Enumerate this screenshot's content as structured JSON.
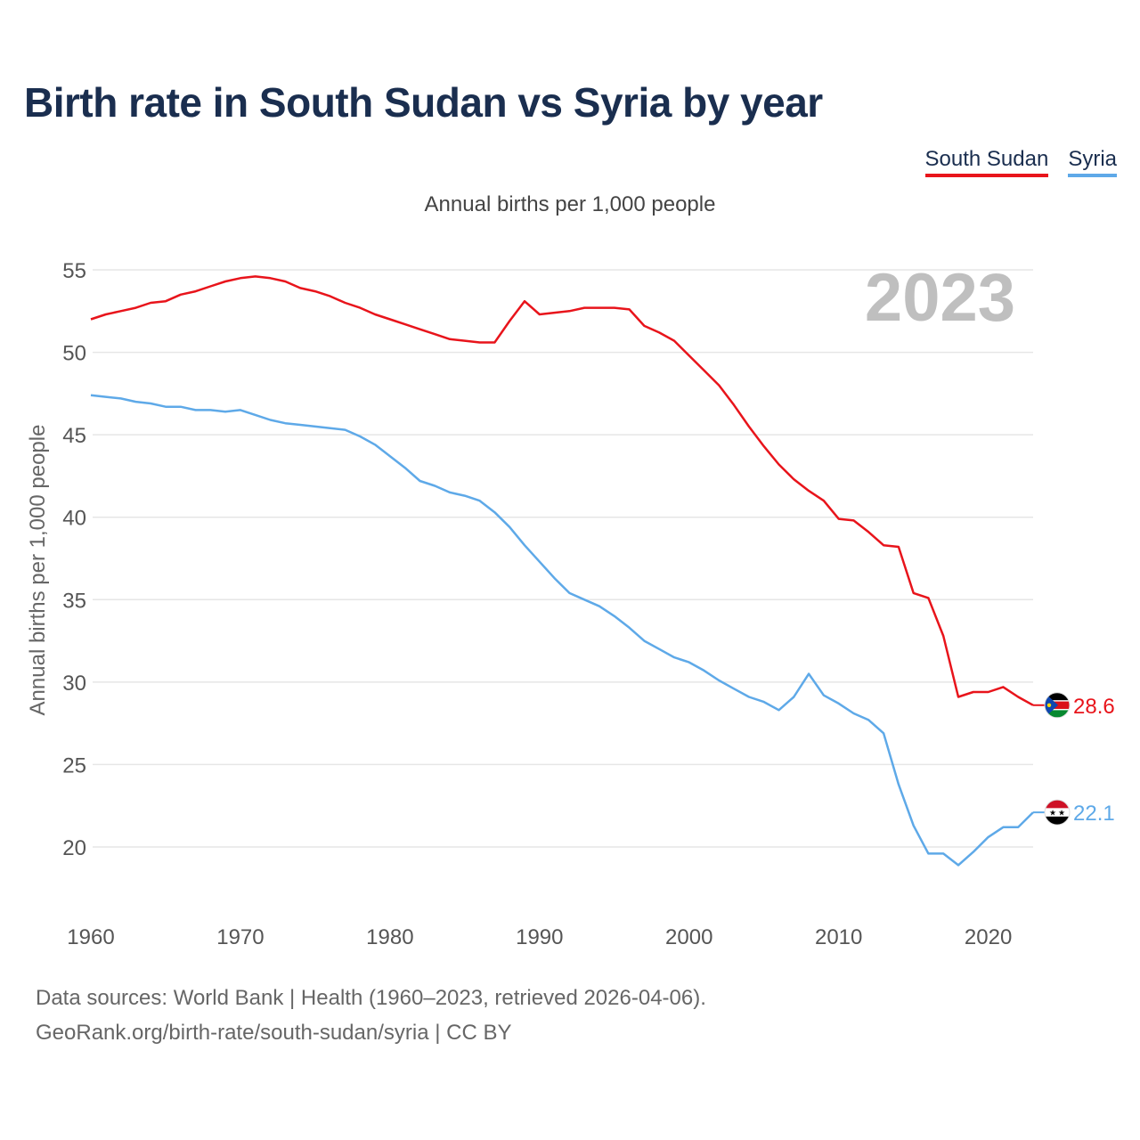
{
  "title": "Birth rate in South Sudan vs Syria by year",
  "subtitle": "Annual births per 1,000 people",
  "legend": [
    {
      "label": "South Sudan",
      "color": "#e8141b"
    },
    {
      "label": "Syria",
      "color": "#5ea9e8"
    }
  ],
  "year_badge": "2023",
  "end_labels": {
    "south_sudan": "28.6",
    "syria": "22.1"
  },
  "flag_icons": {
    "south_sudan": "south-sudan-flag-icon",
    "syria": "syria-flag-icon"
  },
  "sources": {
    "line1": "Data sources: World Bank | Health (1960–2023, retrieved 2026-04-06).",
    "line2": "GeoRank.org/birth-rate/south-sudan/syria | CC BY"
  },
  "chart_data": {
    "type": "line",
    "title": "Birth rate in South Sudan vs Syria by year",
    "xlabel": "",
    "ylabel": "Annual births per 1,000 people",
    "xlim": [
      1960,
      2023
    ],
    "ylim": [
      16,
      57
    ],
    "x_ticks": [
      1960,
      1970,
      1980,
      1990,
      2000,
      2010,
      2020
    ],
    "y_ticks": [
      20,
      25,
      30,
      35,
      40,
      45,
      50,
      55
    ],
    "grid": true,
    "x": [
      1960,
      1961,
      1962,
      1963,
      1964,
      1965,
      1966,
      1967,
      1968,
      1969,
      1970,
      1971,
      1972,
      1973,
      1974,
      1975,
      1976,
      1977,
      1978,
      1979,
      1980,
      1981,
      1982,
      1983,
      1984,
      1985,
      1986,
      1987,
      1988,
      1989,
      1990,
      1991,
      1992,
      1993,
      1994,
      1995,
      1996,
      1997,
      1998,
      1999,
      2000,
      2001,
      2002,
      2003,
      2004,
      2005,
      2006,
      2007,
      2008,
      2009,
      2010,
      2011,
      2012,
      2013,
      2014,
      2015,
      2016,
      2017,
      2018,
      2019,
      2020,
      2021,
      2022,
      2023
    ],
    "series": [
      {
        "name": "South Sudan",
        "color": "#e8141b",
        "values": [
          52.0,
          52.3,
          52.5,
          52.7,
          53.0,
          53.1,
          53.5,
          53.7,
          54.0,
          54.3,
          54.5,
          54.6,
          54.5,
          54.3,
          53.9,
          53.7,
          53.4,
          53.0,
          52.7,
          52.3,
          52.0,
          51.7,
          51.4,
          51.1,
          50.8,
          50.7,
          50.6,
          50.6,
          51.9,
          53.1,
          52.3,
          52.4,
          52.5,
          52.7,
          52.7,
          52.7,
          52.6,
          51.6,
          51.2,
          50.7,
          49.8,
          48.9,
          48.0,
          46.8,
          45.5,
          44.3,
          43.2,
          42.3,
          41.6,
          41.0,
          39.9,
          39.8,
          39.1,
          38.3,
          38.2,
          35.4,
          35.1,
          32.8,
          29.1,
          29.4,
          29.4,
          29.7,
          29.1,
          28.6
        ]
      },
      {
        "name": "Syria",
        "color": "#5ea9e8",
        "values": [
          47.4,
          47.3,
          47.2,
          47.0,
          46.9,
          46.7,
          46.7,
          46.5,
          46.5,
          46.4,
          46.5,
          46.2,
          45.9,
          45.7,
          45.6,
          45.5,
          45.4,
          45.3,
          44.9,
          44.4,
          43.7,
          43.0,
          42.2,
          41.9,
          41.5,
          41.3,
          41.0,
          40.3,
          39.4,
          38.3,
          37.3,
          36.3,
          35.4,
          35.0,
          34.6,
          34.0,
          33.3,
          32.5,
          32.0,
          31.5,
          31.2,
          30.7,
          30.1,
          29.6,
          29.1,
          28.8,
          28.3,
          29.1,
          30.5,
          29.2,
          28.7,
          28.1,
          27.7,
          26.9,
          23.8,
          21.3,
          19.6,
          19.6,
          18.9,
          19.7,
          20.6,
          21.2,
          21.2,
          22.1
        ]
      }
    ]
  }
}
